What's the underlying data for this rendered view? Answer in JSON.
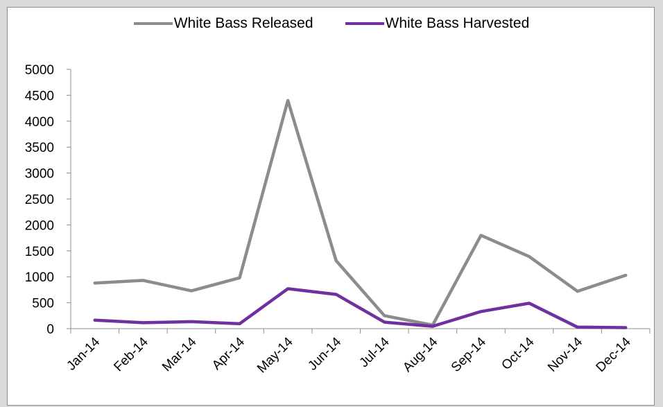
{
  "chart_data": {
    "type": "line",
    "categories": [
      "Jan-14",
      "Feb-14",
      "Mar-14",
      "Apr-14",
      "May-14",
      "Jun-14",
      "Jul-14",
      "Aug-14",
      "Sep-14",
      "Oct-14",
      "Nov-14",
      "Dec-14"
    ],
    "series": [
      {
        "name": "White Bass Released",
        "color": "#8c8c8c",
        "values": [
          880,
          930,
          730,
          980,
          4400,
          1310,
          250,
          70,
          1800,
          1390,
          720,
          1030
        ]
      },
      {
        "name": "White Bass Harvested",
        "color": "#7030a0",
        "values": [
          165,
          115,
          135,
          95,
          770,
          660,
          125,
          45,
          330,
          490,
          30,
          20
        ]
      }
    ],
    "ylim": [
      0,
      5000
    ],
    "yticks": [
      "0",
      "500",
      "1000",
      "1500",
      "2000",
      "2500",
      "3000",
      "3500",
      "4000",
      "4500",
      "5000"
    ],
    "grid": false,
    "legend": "top",
    "xlabel": "",
    "ylabel": "",
    "title": ""
  }
}
